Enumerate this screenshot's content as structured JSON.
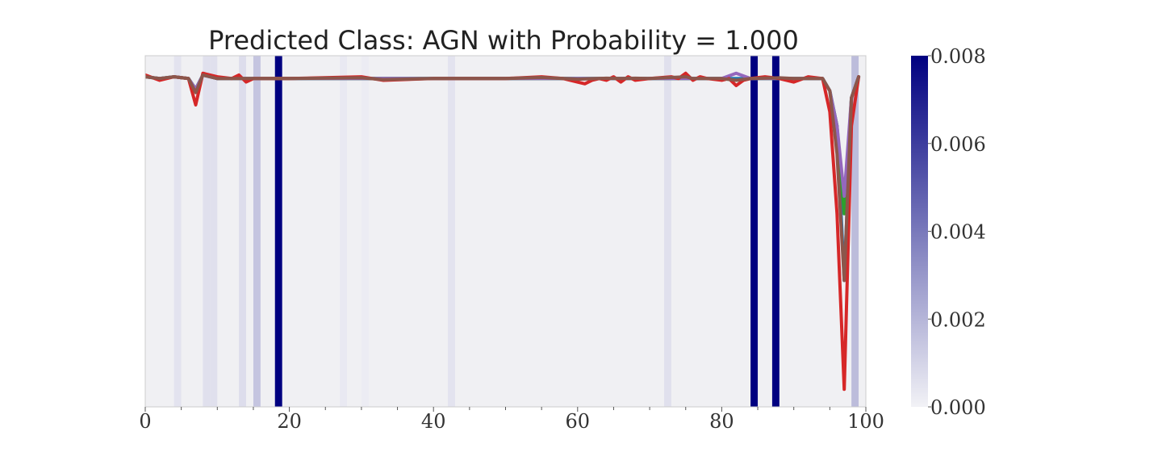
{
  "chart_data": {
    "type": "line",
    "title": "Predicted Class: AGN with Probability = 1.000",
    "xlabel": "",
    "ylabel": "",
    "xlim": [
      0,
      100
    ],
    "ylim": [
      0,
      1
    ],
    "x_ticks": [
      0,
      20,
      40,
      60,
      80,
      100
    ],
    "x_tick_labels": [
      "0",
      "20",
      "40",
      "60",
      "80",
      "100"
    ],
    "y_ticks_visible": false,
    "grid": false,
    "legend": "none",
    "background_color": "#f0f0f3",
    "heat_bands": {
      "description_units": "index bins of width 1; value on colorbar scale",
      "bins": [
        {
          "x": 4,
          "v": 0.0005
        },
        {
          "x": 8,
          "v": 0.0006
        },
        {
          "x": 9,
          "v": 0.0006
        },
        {
          "x": 13,
          "v": 0.0007
        },
        {
          "x": 15,
          "v": 0.0015
        },
        {
          "x": 18,
          "v": 0.008
        },
        {
          "x": 27,
          "v": 0.0003
        },
        {
          "x": 30,
          "v": 0.0002
        },
        {
          "x": 42,
          "v": 0.0005
        },
        {
          "x": 72,
          "v": 0.0006
        },
        {
          "x": 84,
          "v": 0.008
        },
        {
          "x": 87,
          "v": 0.008
        },
        {
          "x": 98,
          "v": 0.0018
        }
      ]
    },
    "colorbar": {
      "min": 0.0,
      "max": 0.008,
      "ticks": [
        0.0,
        0.002,
        0.004,
        0.006,
        0.008
      ],
      "tick_labels": [
        "0.000",
        "0.002",
        "0.004",
        "0.006",
        "0.008"
      ],
      "colors": [
        "#f2f2f6",
        "#000080"
      ]
    },
    "series": [
      {
        "color": "#1f77b4",
        "x": [
          0,
          2,
          4,
          6,
          7,
          8,
          10,
          12,
          14,
          16,
          20,
          30,
          40,
          50,
          60,
          70,
          75,
          80,
          82,
          84,
          90,
          94,
          95,
          96,
          97,
          98,
          99
        ],
        "y": [
          0.94,
          0.935,
          0.94,
          0.935,
          0.905,
          0.945,
          0.935,
          0.935,
          0.935,
          0.935,
          0.935,
          0.935,
          0.935,
          0.935,
          0.935,
          0.935,
          0.935,
          0.935,
          0.935,
          0.935,
          0.935,
          0.935,
          0.9,
          0.8,
          0.36,
          0.88,
          0.94
        ]
      },
      {
        "color": "#2ca02c",
        "x": [
          0,
          2,
          4,
          6,
          7,
          8,
          10,
          12,
          14,
          16,
          20,
          30,
          40,
          50,
          60,
          70,
          75,
          80,
          82,
          84,
          90,
          94,
          95,
          96,
          97,
          98,
          99
        ],
        "y": [
          0.94,
          0.935,
          0.94,
          0.935,
          0.905,
          0.945,
          0.935,
          0.935,
          0.935,
          0.935,
          0.935,
          0.935,
          0.935,
          0.935,
          0.935,
          0.935,
          0.935,
          0.935,
          0.93,
          0.935,
          0.935,
          0.935,
          0.9,
          0.8,
          0.55,
          0.88,
          0.94
        ]
      },
      {
        "color": "#9467bd",
        "x": [
          0,
          2,
          4,
          6,
          7,
          8,
          10,
          12,
          14,
          16,
          20,
          30,
          40,
          50,
          60,
          70,
          75,
          80,
          82,
          84,
          90,
          94,
          95,
          96,
          97,
          98,
          99
        ],
        "y": [
          0.94,
          0.935,
          0.94,
          0.935,
          0.905,
          0.945,
          0.935,
          0.935,
          0.935,
          0.935,
          0.935,
          0.935,
          0.935,
          0.935,
          0.935,
          0.935,
          0.935,
          0.935,
          0.95,
          0.935,
          0.935,
          0.935,
          0.9,
          0.8,
          0.6,
          0.88,
          0.94
        ]
      },
      {
        "color": "#d62728",
        "x": [
          0,
          2,
          4,
          6,
          7,
          8,
          10,
          12,
          13,
          14,
          15,
          16,
          20,
          30,
          33,
          40,
          50,
          55,
          58,
          60,
          61,
          62,
          63,
          64,
          65,
          66,
          67,
          68,
          70,
          73,
          74,
          75,
          76,
          77,
          78,
          80,
          81,
          82,
          83,
          84,
          86,
          88,
          90,
          92,
          94,
          95,
          96,
          97,
          98,
          99
        ],
        "y": [
          0.945,
          0.93,
          0.94,
          0.935,
          0.86,
          0.95,
          0.94,
          0.935,
          0.945,
          0.925,
          0.935,
          0.935,
          0.935,
          0.94,
          0.93,
          0.935,
          0.935,
          0.94,
          0.935,
          0.925,
          0.92,
          0.93,
          0.935,
          0.93,
          0.94,
          0.925,
          0.94,
          0.93,
          0.935,
          0.94,
          0.935,
          0.95,
          0.93,
          0.94,
          0.935,
          0.93,
          0.935,
          0.915,
          0.93,
          0.935,
          0.94,
          0.935,
          0.925,
          0.94,
          0.935,
          0.84,
          0.55,
          0.05,
          0.8,
          0.94
        ]
      },
      {
        "color": "#8c564b",
        "x": [
          0,
          2,
          4,
          6,
          7,
          8,
          10,
          12,
          14,
          16,
          20,
          30,
          33,
          40,
          50,
          55,
          58,
          60,
          64,
          66,
          68,
          70,
          75,
          76,
          80,
          82,
          84,
          88,
          90,
          92,
          94,
          95,
          96,
          97,
          98,
          99
        ],
        "y": [
          0.94,
          0.935,
          0.94,
          0.935,
          0.895,
          0.945,
          0.935,
          0.935,
          0.935,
          0.935,
          0.935,
          0.937,
          0.932,
          0.935,
          0.935,
          0.938,
          0.935,
          0.933,
          0.936,
          0.935,
          0.936,
          0.935,
          0.94,
          0.935,
          0.935,
          0.93,
          0.935,
          0.937,
          0.935,
          0.935,
          0.935,
          0.9,
          0.72,
          0.36,
          0.88,
          0.94
        ]
      }
    ]
  }
}
